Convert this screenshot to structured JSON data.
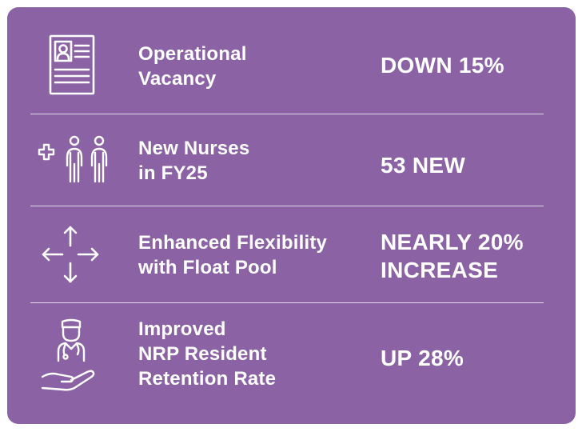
{
  "colors": {
    "background": "#8b62a4",
    "text": "#ffffff",
    "divider": "#e4d9ec"
  },
  "rows": [
    {
      "icon": "resume-document-icon",
      "label_lines": [
        "Operational",
        "Vacancy"
      ],
      "value_lines": [
        "DOWN 15%"
      ]
    },
    {
      "icon": "new-nurses-icon",
      "label_lines": [
        "New Nurses",
        "in FY25"
      ],
      "value_lines": [
        "53 NEW"
      ]
    },
    {
      "icon": "four-way-arrows-icon",
      "label_lines": [
        "Enhanced Flexibility",
        "with Float Pool"
      ],
      "value_lines": [
        "NEARLY 20%",
        "INCREASE"
      ]
    },
    {
      "icon": "nurse-in-hand-icon",
      "label_lines": [
        "Improved",
        "NRP Resident",
        "Retention Rate"
      ],
      "value_lines": [
        "UP 28%"
      ]
    }
  ]
}
